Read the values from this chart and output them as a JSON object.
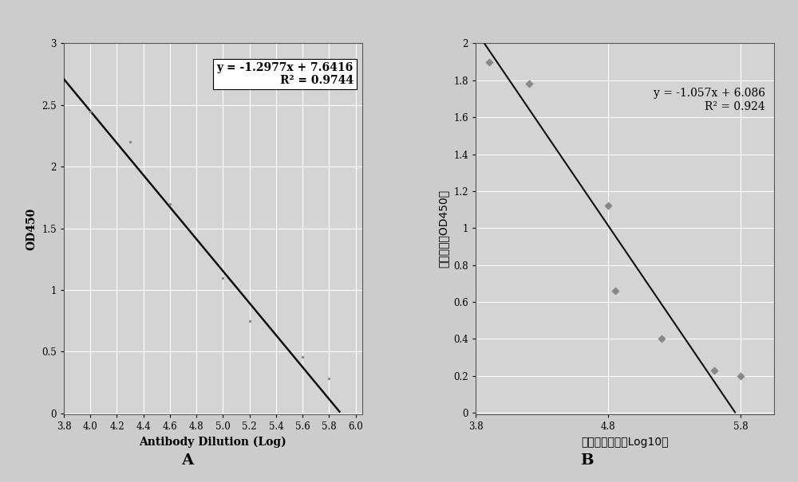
{
  "plot_A": {
    "scatter_x": [
      4.0,
      4.3,
      4.6,
      5.0,
      5.2,
      5.6,
      5.8
    ],
    "scatter_y": [
      2.45,
      2.2,
      1.7,
      1.1,
      0.75,
      0.46,
      0.28
    ],
    "line_x_start": 3.8,
    "line_x_end": 6.0,
    "slope": -1.2977,
    "intercept": 7.6416,
    "equation": "y = -1.2977x + 7.6416",
    "r2": "R² = 0.9744",
    "xlabel": "Antibody Dilution (Log)",
    "ylabel": "OD450",
    "xlim": [
      3.8,
      6.05
    ],
    "ylim": [
      -0.01,
      3.0
    ],
    "xticks": [
      3.8,
      4.0,
      4.2,
      4.4,
      4.6,
      4.8,
      5.0,
      5.2,
      5.4,
      5.6,
      5.8,
      6.0
    ],
    "yticks": [
      0,
      0.5,
      1.0,
      1.5,
      2.0,
      2.5,
      3.0
    ],
    "ytick_labels": [
      "0",
      "0.5",
      "1",
      "1.5",
      "2",
      "2.5",
      "3"
    ],
    "label": "A"
  },
  "plot_B": {
    "scatter_x": [
      3.9,
      4.2,
      4.8,
      4.85,
      5.2,
      5.6,
      5.8
    ],
    "scatter_y": [
      1.9,
      1.78,
      1.12,
      0.66,
      0.4,
      0.23,
      0.2
    ],
    "line_x_start": 3.8,
    "line_x_end": 5.756,
    "slope": -1.057,
    "intercept": 6.086,
    "equation": "y = -1.057x + 6.086",
    "r2": "R² = 0.924",
    "xlabel": "抗体稀释倍数（Log10）",
    "ylabel": "吸光度値（OD450）",
    "xlim": [
      3.8,
      6.05
    ],
    "ylim": [
      -0.01,
      2.0
    ],
    "xticks": [
      3.8,
      4.8,
      5.8
    ],
    "yticks": [
      0,
      0.2,
      0.4,
      0.6,
      0.8,
      1.0,
      1.2,
      1.4,
      1.6,
      1.8,
      2.0
    ],
    "ytick_labels": [
      "0",
      "0.2",
      "0.4",
      "0.6",
      "0.8",
      "1",
      "1.2",
      "1.4",
      "1.6",
      "1.8",
      "2"
    ],
    "label": "B"
  },
  "bg_color": "#cccccc",
  "plot_bg_color": "#d4d4d4",
  "grid_color": "#ffffff",
  "scatter_color": "#888888",
  "line_color": "#111111"
}
